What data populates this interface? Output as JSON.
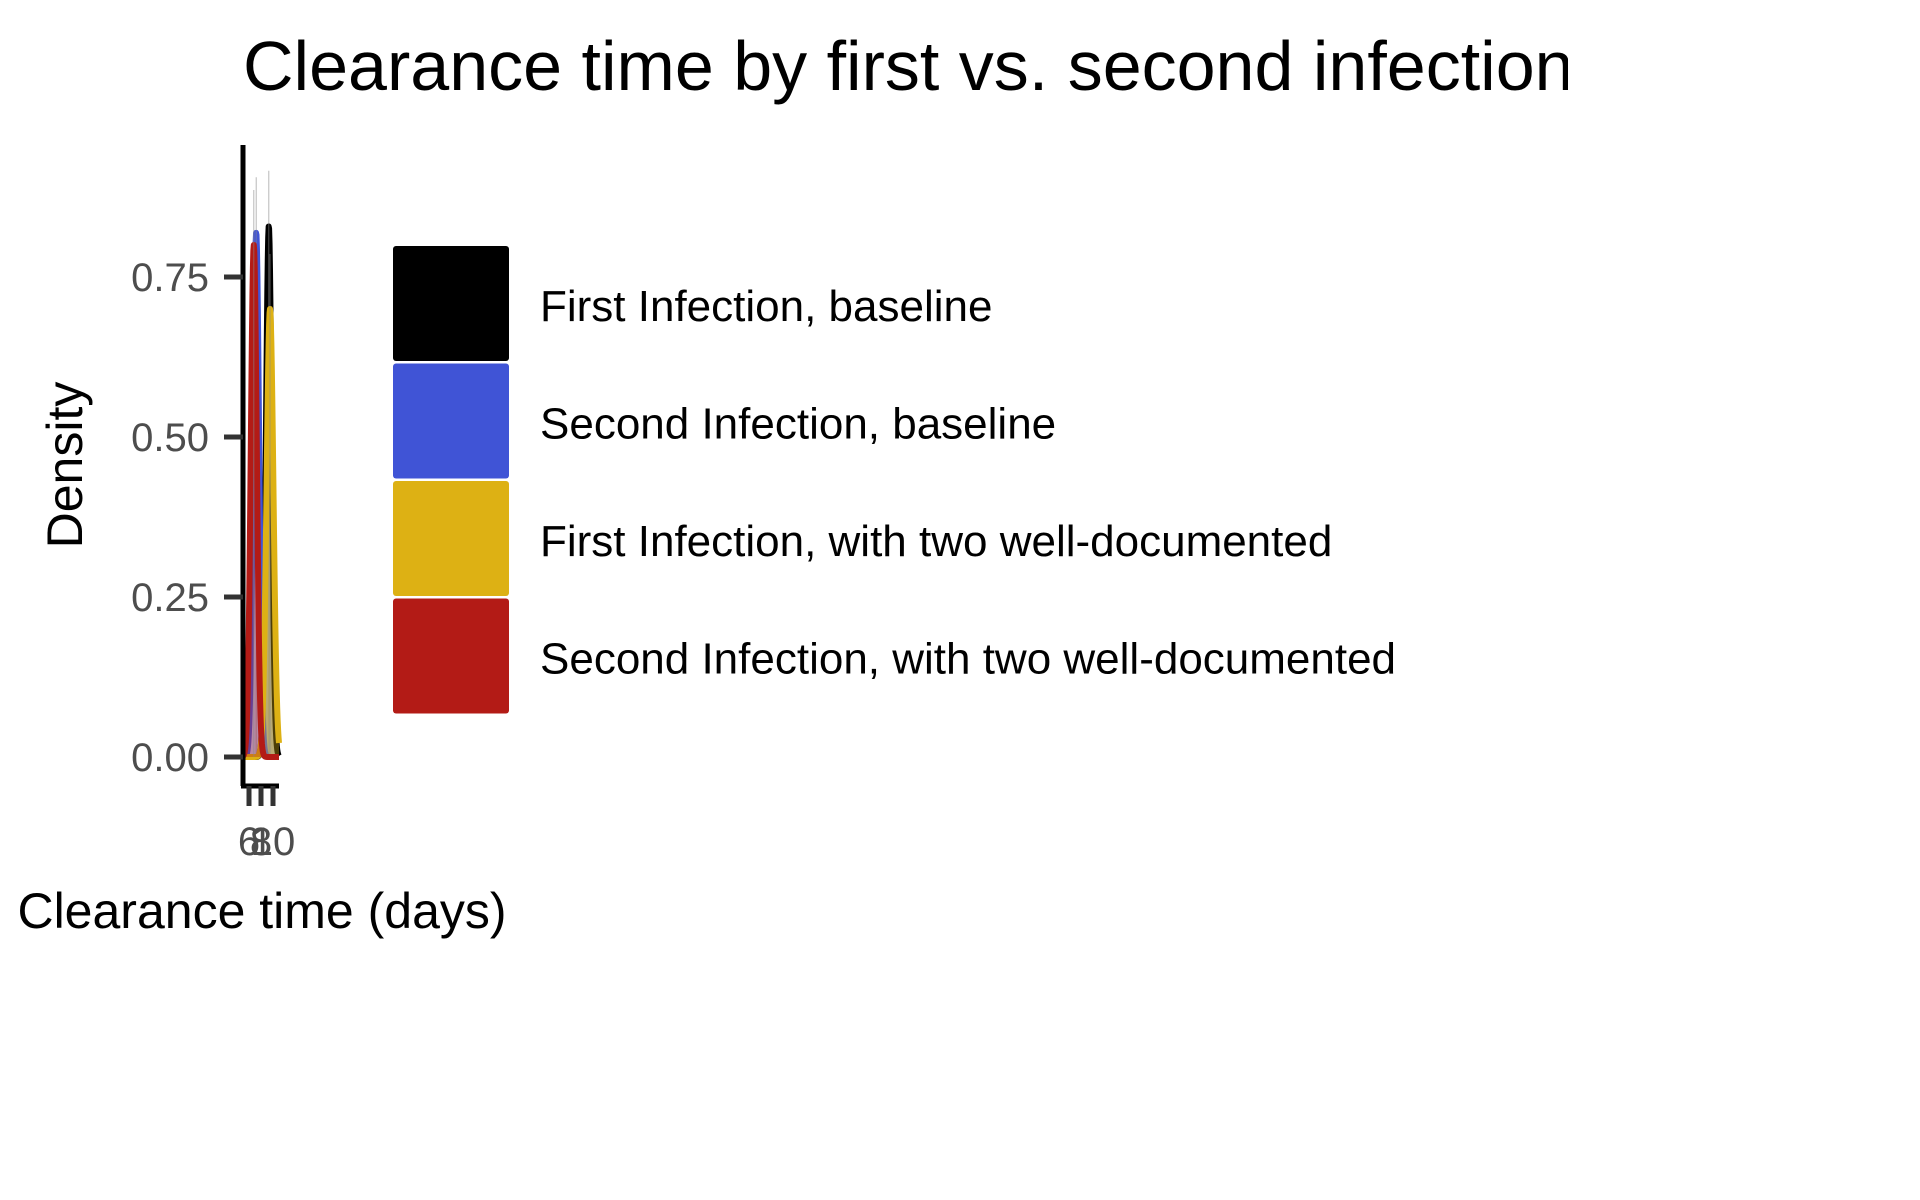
{
  "chart_data": {
    "type": "area",
    "title": "Clearance time by first vs. second infection",
    "xlabel": "Clearance time (days)",
    "ylabel": "Density",
    "xlim": [
      5,
      11
    ],
    "ylim": [
      0,
      0.93
    ],
    "x_ticks": [
      6,
      8,
      10
    ],
    "x_tick_labels": [
      "6",
      "8",
      "10"
    ],
    "y_ticks": [
      0,
      0.25,
      0.5,
      0.75
    ],
    "y_tick_labels": [
      "0.00",
      "0.25",
      "0.50",
      "0.75"
    ],
    "grid": false,
    "legend_position": "right",
    "series": [
      {
        "name": "First Infection, baseline",
        "color": "#000000",
        "mean": 9.3,
        "sd": 0.48,
        "peak": 0.83
      },
      {
        "name": "Second Infection, baseline",
        "color": "#4054d6",
        "mean": 7.2,
        "sd": 0.49,
        "peak": 0.82
      },
      {
        "name": "First Infection, with two well-documented",
        "color": "#ddb114",
        "mean": 9.5,
        "sd": 0.57,
        "peak": 0.7
      },
      {
        "name": "Second Infection, with two well-documented",
        "color": "#b31b16",
        "mean": 6.8,
        "sd": 0.5,
        "peak": 0.8
      }
    ]
  }
}
